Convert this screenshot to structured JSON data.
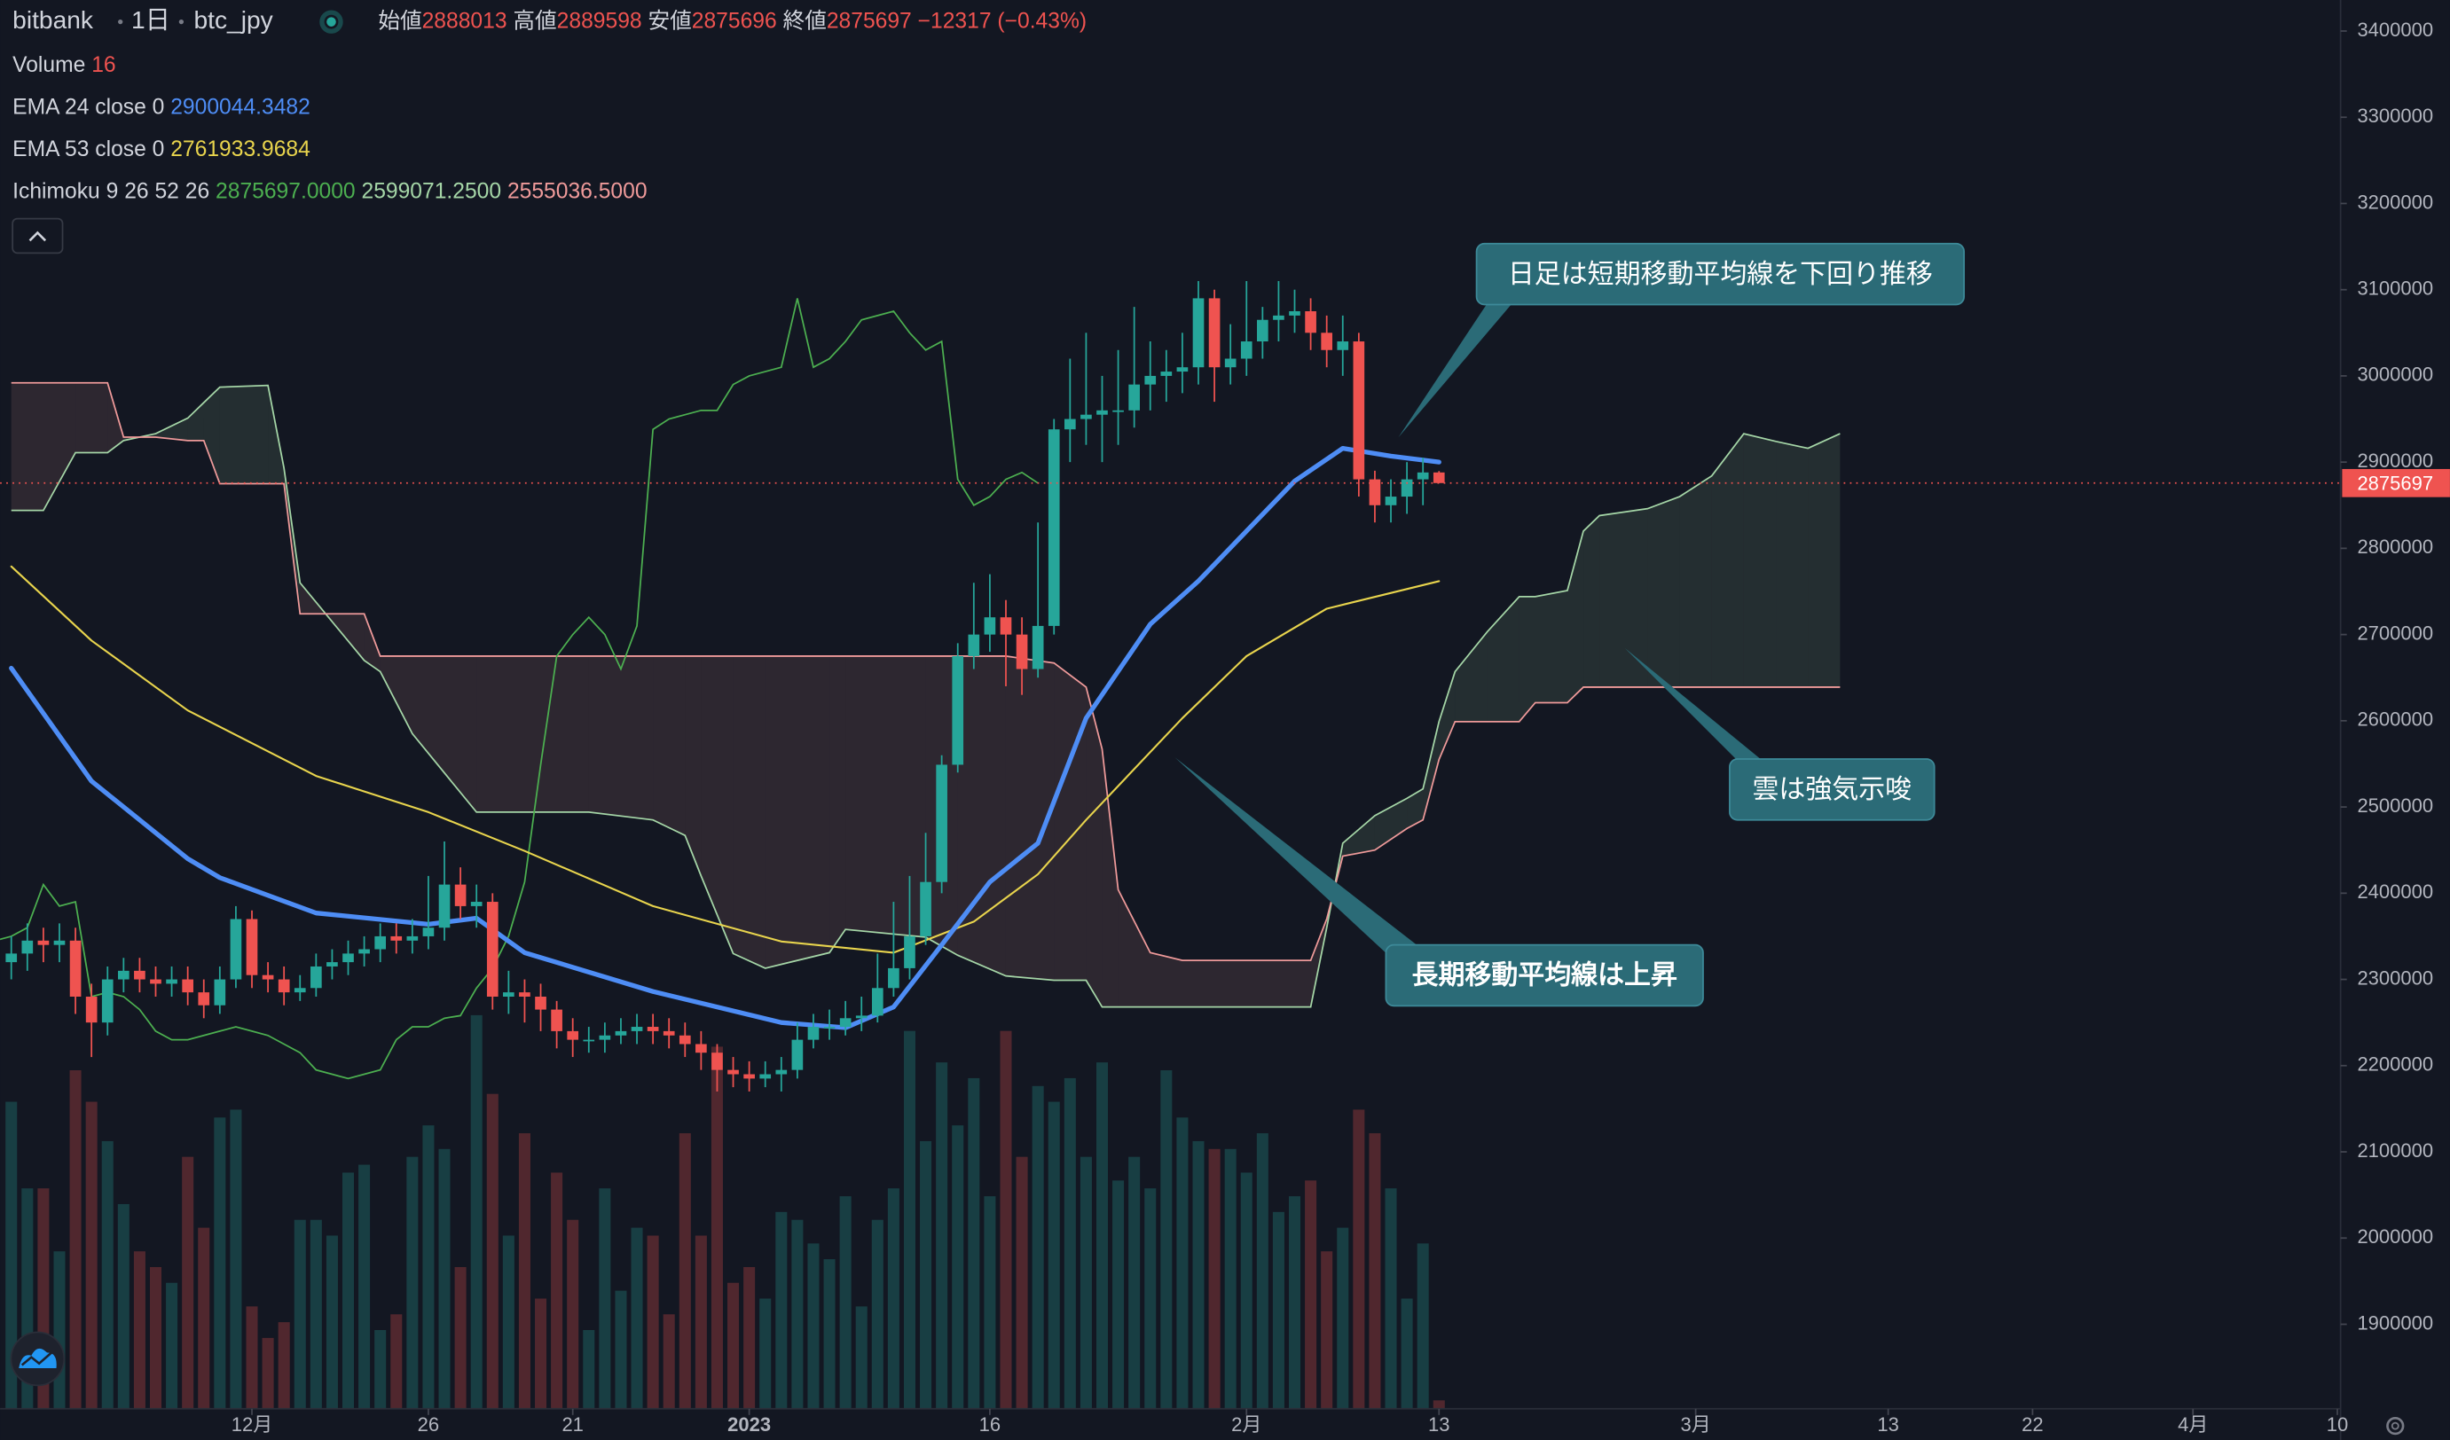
{
  "chart_data": {
    "type": "candlestick",
    "header": {
      "exchange": "bitbank",
      "interval": "1日",
      "symbol": "btc_jpy",
      "open_label": "始値",
      "high_label": "高値",
      "low_label": "安値",
      "close_label": "終値",
      "change": {
        "value": -12317,
        "label": "−12317"
      },
      "change_pct": {
        "value": -0.43,
        "label": "(−0.43%)"
      }
    },
    "up_color": "#26a69a",
    "down_color": "#ef5350",
    "open": [
      2320000,
      2330000,
      2345000,
      2340000,
      2345000,
      2280000,
      2250000,
      2300000,
      2310000,
      2300000,
      2295000,
      2300000,
      2285000,
      2270000,
      2300000,
      2370000,
      2305000,
      2300000,
      2285000,
      2290000,
      2315000,
      2320000,
      2330000,
      2335000,
      2350000,
      2345000,
      2350000,
      2360000,
      2410000,
      2385000,
      2390000,
      2280000,
      2285000,
      2280000,
      2265000,
      2240000,
      2230000,
      2230000,
      2235000,
      2240000,
      2245000,
      2240000,
      2235000,
      2225000,
      2215000,
      2195000,
      2190000,
      2185000,
      2190000,
      2195000,
      2230000,
      2245000,
      2245000,
      2255000,
      2258000,
      2290000,
      2313000,
      2350000,
      2413000,
      2549000,
      2675000,
      2700000,
      2720000,
      2700000,
      2660000,
      2710000,
      2938000,
      2950000,
      2955000,
      2960000,
      2960000,
      2990000,
      3000000,
      3005000,
      3010000,
      3090000,
      3010000,
      3020000,
      3040000,
      3065000,
      3070000,
      3075000,
      3050000,
      3030000,
      3040000,
      2880000,
      2850000,
      2860000,
      2880000,
      2888013
    ],
    "high": [
      2350000,
      2365000,
      2360000,
      2365000,
      2360000,
      2295000,
      2315000,
      2325000,
      2325000,
      2315000,
      2315000,
      2315000,
      2300000,
      2315000,
      2385000,
      2380000,
      2320000,
      2315000,
      2305000,
      2330000,
      2335000,
      2345000,
      2350000,
      2365000,
      2365000,
      2370000,
      2420000,
      2460000,
      2430000,
      2410000,
      2400000,
      2310000,
      2300000,
      2295000,
      2275000,
      2255000,
      2245000,
      2250000,
      2255000,
      2260000,
      2260000,
      2255000,
      2250000,
      2240000,
      2225000,
      2210000,
      2205000,
      2205000,
      2210000,
      2250000,
      2260000,
      2265000,
      2275000,
      2280000,
      2330000,
      2390000,
      2420000,
      2470000,
      2560000,
      2690000,
      2760000,
      2770000,
      2740000,
      2720000,
      2830000,
      2950000,
      3020000,
      3050000,
      3000000,
      3030000,
      3080000,
      3040000,
      3030000,
      3050000,
      3110000,
      3100000,
      3060000,
      3110000,
      3080000,
      3110000,
      3100000,
      3090000,
      3070000,
      3070000,
      3050000,
      2890000,
      2880000,
      2900000,
      2905000,
      2889598
    ],
    "low": [
      2300000,
      2310000,
      2320000,
      2320000,
      2260000,
      2210000,
      2235000,
      2285000,
      2285000,
      2280000,
      2280000,
      2270000,
      2255000,
      2260000,
      2290000,
      2290000,
      2285000,
      2270000,
      2275000,
      2280000,
      2300000,
      2305000,
      2315000,
      2320000,
      2330000,
      2330000,
      2335000,
      2345000,
      2370000,
      2360000,
      2265000,
      2260000,
      2250000,
      2240000,
      2220000,
      2210000,
      2215000,
      2215000,
      2225000,
      2225000,
      2225000,
      2220000,
      2210000,
      2195000,
      2170000,
      2175000,
      2170000,
      2175000,
      2170000,
      2185000,
      2220000,
      2230000,
      2235000,
      2240000,
      2250000,
      2280000,
      2300000,
      2340000,
      2400000,
      2540000,
      2660000,
      2680000,
      2640000,
      2630000,
      2650000,
      2700000,
      2900000,
      2920000,
      2900000,
      2920000,
      2940000,
      2960000,
      2970000,
      2980000,
      2990000,
      2970000,
      2990000,
      3000000,
      3020000,
      3040000,
      3050000,
      3030000,
      3010000,
      3000000,
      2860000,
      2830000,
      2830000,
      2840000,
      2850000,
      2875696
    ],
    "close": [
      2330000,
      2345000,
      2340000,
      2345000,
      2280000,
      2250000,
      2300000,
      2310000,
      2300000,
      2295000,
      2300000,
      2285000,
      2270000,
      2300000,
      2370000,
      2305000,
      2300000,
      2285000,
      2290000,
      2315000,
      2320000,
      2330000,
      2335000,
      2350000,
      2345000,
      2350000,
      2360000,
      2410000,
      2385000,
      2390000,
      2280000,
      2285000,
      2280000,
      2265000,
      2240000,
      2230000,
      2230000,
      2235000,
      2240000,
      2245000,
      2240000,
      2235000,
      2225000,
      2215000,
      2195000,
      2190000,
      2185000,
      2190000,
      2195000,
      2230000,
      2245000,
      2245000,
      2255000,
      2258000,
      2290000,
      2313000,
      2350000,
      2413000,
      2549000,
      2675000,
      2700000,
      2720000,
      2700000,
      2660000,
      2710000,
      2938000,
      2950000,
      2955000,
      2960000,
      2960000,
      2990000,
      3000000,
      3005000,
      3010000,
      3090000,
      3010000,
      3020000,
      3040000,
      3065000,
      3070000,
      3075000,
      3050000,
      3030000,
      3040000,
      2880000,
      2850000,
      2860000,
      2880000,
      2888013,
      2875697
    ],
    "volume": {
      "name": "Volume",
      "values": [
        585,
        420,
        420,
        300,
        645,
        585,
        510,
        390,
        300,
        270,
        240,
        480,
        345,
        555,
        570,
        195,
        135,
        165,
        360,
        360,
        330,
        450,
        465,
        150,
        180,
        480,
        540,
        495,
        270,
        750,
        600,
        330,
        525,
        210,
        450,
        360,
        150,
        420,
        225,
        345,
        330,
        180,
        525,
        330,
        690,
        240,
        270,
        210,
        375,
        360,
        315,
        285,
        405,
        195,
        360,
        420,
        720,
        510,
        660,
        540,
        630,
        405,
        720,
        480,
        615,
        585,
        630,
        480,
        660,
        435,
        480,
        420,
        645,
        555,
        510,
        495,
        495,
        450,
        525,
        375,
        405,
        435,
        300,
        345,
        570,
        525,
        420,
        210,
        315,
        16
      ]
    },
    "ema": [
      {
        "name": "EMA 24 close 0",
        "color": "#4e8df5",
        "x": [
          0,
          5,
          11,
          13,
          19,
          26,
          29,
          32,
          40,
          48,
          52,
          55,
          58,
          61,
          64,
          67,
          71,
          74,
          77,
          80,
          83,
          86,
          89
        ],
        "values": [
          2661000,
          2530000,
          2440000,
          2418000,
          2377000,
          2364000,
          2371000,
          2331000,
          2286000,
          2250000,
          2244000,
          2268000,
          2340000,
          2413000,
          2458000,
          2603000,
          2712000,
          2762000,
          2820000,
          2878000,
          2916000,
          2907000,
          2900044.3482
        ]
      },
      {
        "name": "EMA 53 close 0",
        "color": "#e8d44d",
        "x": [
          0,
          5,
          11,
          19,
          26,
          32,
          40,
          48,
          55,
          60,
          64,
          67,
          73,
          77,
          82,
          89
        ],
        "values": [
          2779000,
          2693000,
          2612000,
          2536000,
          2494000,
          2449000,
          2385000,
          2344000,
          2331000,
          2367000,
          2422000,
          2485000,
          2603000,
          2675000,
          2730000,
          2761933.9684
        ]
      }
    ],
    "ichimoku": {
      "name": "Ichimoku",
      "params": [
        9,
        26,
        52,
        26
      ],
      "lagging_color": "#4caf50",
      "lagging_label": "2875697.0000",
      "span_a": {
        "color": "#a5d6a7",
        "label": "2599071.2500",
        "x": [
          0,
          2,
          4,
          6,
          7,
          9,
          11,
          12,
          13,
          16,
          17,
          18,
          22,
          23,
          25,
          29,
          36,
          40,
          42,
          43,
          45,
          47,
          51,
          52,
          57,
          59,
          62,
          65,
          67,
          68,
          69,
          71,
          73,
          81,
          82,
          83,
          85,
          87,
          88,
          89,
          90,
          92,
          94,
          95,
          97,
          98,
          99,
          102,
          104,
          106,
          108,
          110,
          112,
          114
        ],
        "values": [
          2844000,
          2844000,
          2911000,
          2911000,
          2925000,
          2933000,
          2951000,
          2969000,
          2987000,
          2989000,
          2893000,
          2760000,
          2670000,
          2657000,
          2585000,
          2494000,
          2494000,
          2485000,
          2467000,
          2420000,
          2330000,
          2313000,
          2331000,
          2358000,
          2349000,
          2328000,
          2304000,
          2299000,
          2299000,
          2268000,
          2268000,
          2268000,
          2268000,
          2268000,
          2360000,
          2458000,
          2490000,
          2510000,
          2521000,
          2599071.25,
          2657000,
          2703000,
          2744000,
          2744000,
          2751000,
          2820000,
          2838000,
          2846000,
          2860000,
          2884000,
          2933000,
          2924000,
          2916000,
          2933000
        ]
      },
      "span_b": {
        "color": "#ef9a9a",
        "label": "2555036.5000",
        "x": [
          0,
          2,
          4,
          6,
          7,
          9,
          11,
          12,
          13,
          16,
          17,
          18,
          22,
          23,
          25,
          29,
          36,
          40,
          42,
          43,
          45,
          47,
          51,
          52,
          57,
          59,
          62,
          65,
          67,
          68,
          69,
          71,
          73,
          81,
          82,
          83,
          85,
          87,
          88,
          89,
          90,
          92,
          94,
          95,
          97,
          98,
          99,
          102,
          104,
          106,
          108,
          110,
          112,
          114
        ],
        "values": [
          2992000,
          2992000,
          2992000,
          2992000,
          2929000,
          2929000,
          2925000,
          2925000,
          2875000,
          2875000,
          2875000,
          2724000,
          2724000,
          2675000,
          2675000,
          2675000,
          2675000,
          2675000,
          2675000,
          2675000,
          2675000,
          2675000,
          2675000,
          2675000,
          2675000,
          2675000,
          2675000,
          2667000,
          2639000,
          2567000,
          2404000,
          2331000,
          2322000,
          2322000,
          2370000,
          2443000,
          2450000,
          2475000,
          2485000,
          2555036.5,
          2599000,
          2599000,
          2599000,
          2621000,
          2621000,
          2639000,
          2639000,
          2639000,
          2639000,
          2639000,
          2639000,
          2639000,
          2639000,
          2639000
        ]
      }
    },
    "annotations": [
      "日足は短期移動平均線を下回り推移",
      "雲は強気示唆",
      "長期移動平均線は上昇"
    ],
    "xlim": [
      -0.7,
      145.2
    ],
    "xticks": [
      {
        "value": 15,
        "label": "12月"
      },
      26,
      {
        "value": 35,
        "label": "21"
      },
      {
        "value": 46,
        "label": "2023"
      },
      {
        "value": 61,
        "label": "16"
      },
      {
        "value": 77,
        "label": "2月"
      },
      {
        "value": 89,
        "label": "13"
      },
      {
        "value": 105,
        "label": "3月"
      },
      {
        "value": 117,
        "label": "13"
      },
      {
        "value": 126,
        "label": "22"
      },
      {
        "value": 136,
        "label": "4月"
      },
      {
        "value": 145,
        "label": "10"
      }
    ],
    "ylim": [
      1802000,
      3436000
    ],
    "yticks": [
      1900000,
      2000000,
      2100000,
      2200000,
      2300000,
      2400000,
      2500000,
      2600000,
      2700000,
      2800000,
      2900000,
      3000000,
      3100000,
      3200000,
      3300000,
      3400000
    ]
  }
}
